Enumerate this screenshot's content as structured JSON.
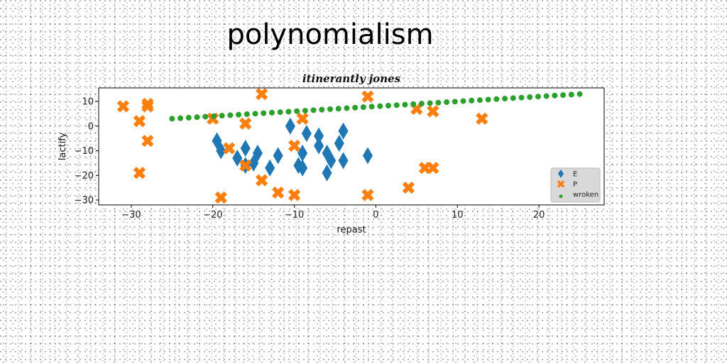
{
  "suptitle": "polynomialism",
  "chart_data": {
    "type": "scatter",
    "title": "itinerantly jones",
    "xlabel": "repast",
    "ylabel": "lactify",
    "xlim": [
      -34,
      28
    ],
    "ylim": [
      -32,
      15.5
    ],
    "xticks": [
      -30,
      -20,
      -10,
      0,
      10,
      20
    ],
    "yticks": [
      10,
      0,
      -10,
      -20,
      -30
    ],
    "grid": false,
    "legend_position": "lower-right",
    "series": [
      {
        "name": "E",
        "marker": "diamond",
        "color": "#1f77b4",
        "points": [
          [
            -19.5,
            -6
          ],
          [
            -19,
            -10
          ],
          [
            -17,
            -13
          ],
          [
            -16,
            -9
          ],
          [
            -16,
            -16
          ],
          [
            -15,
            -15
          ],
          [
            -14.5,
            -11
          ],
          [
            -13,
            -17
          ],
          [
            -12,
            -12
          ],
          [
            -10.5,
            0
          ],
          [
            -9.5,
            -16
          ],
          [
            -9,
            -11
          ],
          [
            -9,
            -17
          ],
          [
            -8.5,
            -3
          ],
          [
            -7,
            -8
          ],
          [
            -7,
            -4
          ],
          [
            -6,
            -11
          ],
          [
            -6,
            -19
          ],
          [
            -5.5,
            -14
          ],
          [
            -4.5,
            -7
          ],
          [
            -4,
            -14
          ],
          [
            -4,
            -2
          ],
          [
            -1,
            -12
          ]
        ]
      },
      {
        "name": "P",
        "marker": "x",
        "color": "#ff7f0e",
        "points": [
          [
            -31,
            8
          ],
          [
            -29,
            2
          ],
          [
            -29,
            -19
          ],
          [
            -28,
            9
          ],
          [
            -28,
            8
          ],
          [
            -28,
            -6
          ],
          [
            -20,
            3
          ],
          [
            -19,
            -29
          ],
          [
            -18,
            -9
          ],
          [
            -16,
            1
          ],
          [
            -16,
            -16
          ],
          [
            -14,
            13
          ],
          [
            -14,
            -22
          ],
          [
            -12,
            -27
          ],
          [
            -10,
            -28
          ],
          [
            -10,
            -8
          ],
          [
            -9,
            3
          ],
          [
            -1,
            12
          ],
          [
            -1,
            -28
          ],
          [
            4,
            -25
          ],
          [
            5,
            7
          ],
          [
            6,
            -17
          ],
          [
            7,
            -17
          ],
          [
            7,
            6
          ],
          [
            13,
            3
          ]
        ]
      },
      {
        "name": "wroken",
        "marker": "circle",
        "color": "#2ca02c",
        "x_start": -25,
        "x_end": 25,
        "y_start": 3,
        "y_end": 13,
        "count": 50
      }
    ]
  }
}
